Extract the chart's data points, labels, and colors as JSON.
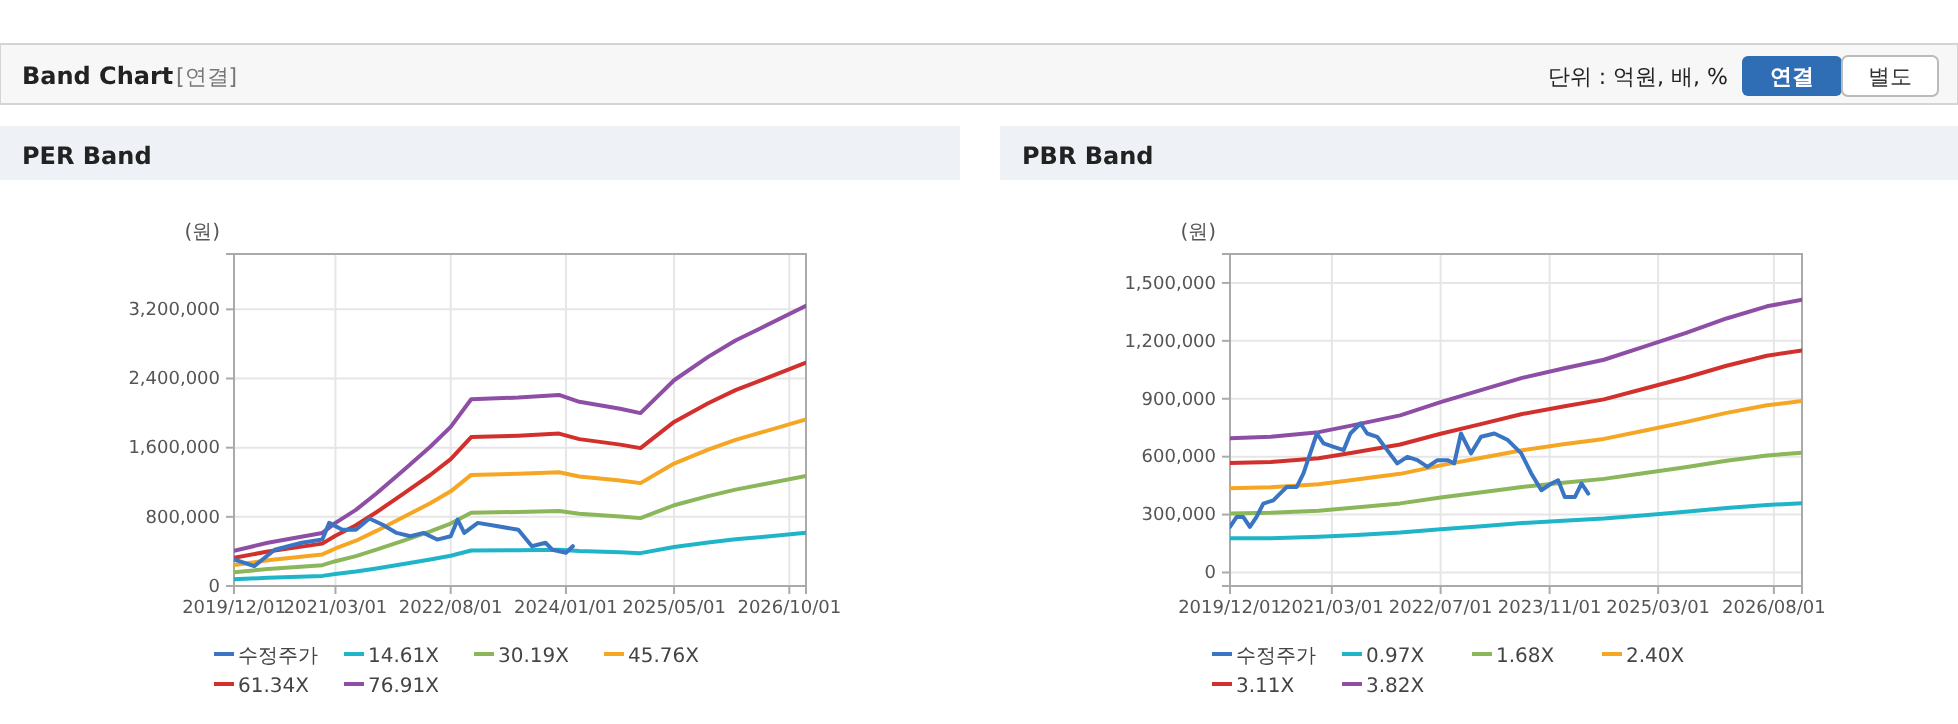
{
  "chart_data": [
    {
      "type": "line",
      "title": "PER Band",
      "ylabel": "(원)",
      "annotations": [
        "Band Chart",
        "[연결]",
        "단위 : 억원, 배, %",
        "연결",
        "별도"
      ],
      "grid": true,
      "legend": "bottom",
      "xlim": [
        "2019-12-01",
        "2026-12-15"
      ],
      "ylim": [
        0,
        3840000
      ],
      "xticks": [
        {
          "value": "2019-12-01",
          "label": "2019/12/01"
        },
        {
          "value": "2021-03-01",
          "label": "2021/03/01"
        },
        {
          "value": "2022-08-01",
          "label": "2022/08/01"
        },
        {
          "value": "2024-01-01",
          "label": "2024/01/01"
        },
        {
          "value": "2025-05-01",
          "label": "2025/05/01"
        },
        {
          "value": "2026-10-01",
          "label": "2026/10/01"
        }
      ],
      "yticks": [
        {
          "value": 0,
          "label": "0"
        },
        {
          "value": 800000,
          "label": "800,000"
        },
        {
          "value": 1600000,
          "label": "1,600,000"
        },
        {
          "value": 2400000,
          "label": "2,400,000"
        },
        {
          "value": 3200000,
          "label": "3,200,000"
        }
      ],
      "series": [
        {
          "name": "14.61X",
          "color": "#1fb5c8",
          "x": [
            "2019-12-01",
            "2020-05-01",
            "2021-01-01",
            "2021-03-01",
            "2021-06-01",
            "2021-09-01",
            "2022-01-01",
            "2022-05-01",
            "2022-08-01",
            "2022-11-01",
            "2023-06-01",
            "2023-12-01",
            "2024-03-01",
            "2024-09-01",
            "2024-12-01",
            "2025-05-01",
            "2025-10-01",
            "2026-02-01",
            "2026-06-01",
            "2026-12-15"
          ],
          "values": [
            77000,
            95000,
            117000,
            139000,
            167000,
            203000,
            255000,
            306000,
            350000,
            410000,
            414000,
            420000,
            405000,
            390000,
            380000,
            452000,
            504000,
            540000,
            568000,
            616000
          ]
        },
        {
          "name": "30.19X",
          "color": "#8cb65a",
          "x": [
            "2019-12-01",
            "2020-05-01",
            "2021-01-01",
            "2021-03-01",
            "2021-06-01",
            "2021-09-01",
            "2022-01-01",
            "2022-05-01",
            "2022-08-01",
            "2022-11-01",
            "2023-06-01",
            "2023-12-01",
            "2024-03-01",
            "2024-09-01",
            "2024-12-01",
            "2025-05-01",
            "2025-10-01",
            "2026-02-01",
            "2026-06-01",
            "2026-12-15"
          ],
          "values": [
            160000,
            196000,
            241000,
            287000,
            345000,
            420000,
            526000,
            632000,
            722000,
            848000,
            856000,
            867000,
            836000,
            805000,
            785000,
            934000,
            1040000,
            1115000,
            1174000,
            1272000
          ]
        },
        {
          "name": "45.76X",
          "color": "#f5a623",
          "x": [
            "2019-12-01",
            "2020-05-01",
            "2021-01-01",
            "2021-03-01",
            "2021-06-01",
            "2021-09-01",
            "2022-01-01",
            "2022-05-01",
            "2022-08-01",
            "2022-11-01",
            "2023-06-01",
            "2023-12-01",
            "2024-03-01",
            "2024-09-01",
            "2024-12-01",
            "2025-05-01",
            "2025-10-01",
            "2026-02-01",
            "2026-06-01",
            "2026-12-15"
          ],
          "values": [
            242000,
            298000,
            365000,
            434000,
            524000,
            637000,
            797000,
            958000,
            1095000,
            1285000,
            1297000,
            1315000,
            1267000,
            1220000,
            1190000,
            1416000,
            1577000,
            1690000,
            1779000,
            1928000
          ]
        },
        {
          "name": "61.34X",
          "color": "#d2302c",
          "x": [
            "2019-12-01",
            "2020-05-01",
            "2021-01-01",
            "2021-03-01",
            "2021-06-01",
            "2021-09-01",
            "2022-01-01",
            "2022-05-01",
            "2022-08-01",
            "2022-11-01",
            "2023-06-01",
            "2023-12-01",
            "2024-03-01",
            "2024-09-01",
            "2024-12-01",
            "2025-05-01",
            "2025-10-01",
            "2026-02-01",
            "2026-06-01",
            "2026-12-15"
          ],
          "values": [
            325000,
            399000,
            490000,
            582000,
            702000,
            853000,
            1069000,
            1284000,
            1468000,
            1723000,
            1739000,
            1763000,
            1699000,
            1635000,
            1595000,
            1898000,
            2114000,
            2265000,
            2385000,
            2584000
          ]
        },
        {
          "name": "76.91X",
          "color": "#8e4ea6",
          "x": [
            "2019-12-01",
            "2020-05-01",
            "2021-01-01",
            "2021-03-01",
            "2021-06-01",
            "2021-09-01",
            "2022-01-01",
            "2022-05-01",
            "2022-08-01",
            "2022-11-01",
            "2023-06-01",
            "2023-12-01",
            "2024-03-01",
            "2024-09-01",
            "2024-12-01",
            "2025-05-01",
            "2025-10-01",
            "2026-02-01",
            "2026-06-01",
            "2026-12-15"
          ],
          "values": [
            407000,
            500000,
            614000,
            730000,
            880000,
            1070000,
            1340000,
            1610000,
            1840000,
            2160000,
            2180000,
            2210000,
            2130000,
            2050000,
            2000000,
            2380000,
            2650000,
            2840000,
            2990000,
            3240000
          ]
        },
        {
          "name": "수정주가",
          "color": "#3a75c4",
          "x": [
            "2019-12-01",
            "2020-03-01",
            "2020-06-01",
            "2020-10-01",
            "2021-01-01",
            "2021-02-01",
            "2021-04-01",
            "2021-06-01",
            "2021-08-01",
            "2021-10-01",
            "2021-12-01",
            "2022-02-01",
            "2022-04-01",
            "2022-06-01",
            "2022-08-01",
            "2022-09-01",
            "2022-10-01",
            "2022-12-01",
            "2023-03-01",
            "2023-06-01",
            "2023-08-01",
            "2023-10-01",
            "2023-11-01",
            "2024-01-01",
            "2024-02-01"
          ],
          "values": [
            307000,
            230000,
            420000,
            500000,
            537000,
            730000,
            650000,
            650000,
            780000,
            705000,
            614000,
            575000,
            614000,
            537000,
            575000,
            767000,
            614000,
            730000,
            690000,
            650000,
            460000,
            500000,
            420000,
            384000,
            460000
          ]
        }
      ]
    },
    {
      "type": "line",
      "title": "PBR Band",
      "ylabel": "(원)",
      "grid": true,
      "legend": "bottom",
      "xlim": [
        "2019-12-01",
        "2026-12-05"
      ],
      "ylim": [
        -70000,
        1650000
      ],
      "xticks": [
        {
          "value": "2019-12-01",
          "label": "2019/12/01"
        },
        {
          "value": "2021-03-01",
          "label": "2021/03/01"
        },
        {
          "value": "2022-07-01",
          "label": "2022/07/01"
        },
        {
          "value": "2023-11-01",
          "label": "2023/11/01"
        },
        {
          "value": "2025-03-01",
          "label": "2025/03/01"
        },
        {
          "value": "2026-08-01",
          "label": "2026/08/01"
        }
      ],
      "yticks": [
        {
          "value": 0,
          "label": "0"
        },
        {
          "value": 300000,
          "label": "300,000"
        },
        {
          "value": 600000,
          "label": "600,000"
        },
        {
          "value": 900000,
          "label": "900,000"
        },
        {
          "value": 1200000,
          "label": "1,200,000"
        },
        {
          "value": 1500000,
          "label": "1,500,000"
        }
      ],
      "series": [
        {
          "name": "0.97X",
          "color": "#1fb5c8",
          "x": [
            "2019-12-01",
            "2020-06-01",
            "2021-01-01",
            "2021-06-01",
            "2022-01-01",
            "2022-07-01",
            "2023-01-01",
            "2023-07-01",
            "2024-01-01",
            "2024-07-01",
            "2025-01-01",
            "2025-07-01",
            "2026-01-01",
            "2026-07-01",
            "2026-12-05"
          ],
          "values": [
            177000,
            178000,
            185000,
            193000,
            207000,
            224000,
            240000,
            256000,
            268000,
            280000,
            297000,
            315000,
            334000,
            350000,
            359000
          ]
        },
        {
          "name": "1.68X",
          "color": "#8cb65a",
          "x": [
            "2019-12-01",
            "2020-06-01",
            "2021-01-01",
            "2021-06-01",
            "2022-01-01",
            "2022-07-01",
            "2023-01-01",
            "2023-07-01",
            "2024-01-01",
            "2024-07-01",
            "2025-01-01",
            "2025-07-01",
            "2026-01-01",
            "2026-07-01",
            "2026-12-05"
          ],
          "values": [
            306000,
            309000,
            320000,
            335000,
            358000,
            388000,
            416000,
            443000,
            465000,
            485000,
            515000,
            545000,
            579000,
            606000,
            621000
          ]
        },
        {
          "name": "2.40X",
          "color": "#f5a623",
          "x": [
            "2019-12-01",
            "2020-06-01",
            "2021-01-01",
            "2021-06-01",
            "2022-01-01",
            "2022-07-01",
            "2023-01-01",
            "2023-07-01",
            "2024-01-01",
            "2024-07-01",
            "2025-01-01",
            "2025-07-01",
            "2026-01-01",
            "2026-07-01",
            "2026-12-05"
          ],
          "values": [
            437000,
            442000,
            457000,
            479000,
            511000,
            555000,
            594000,
            633000,
            664000,
            692000,
            736000,
            779000,
            827000,
            866000,
            888000
          ]
        },
        {
          "name": "3.11X",
          "color": "#d2302c",
          "x": [
            "2019-12-01",
            "2020-06-01",
            "2021-01-01",
            "2021-06-01",
            "2022-01-01",
            "2022-07-01",
            "2023-01-01",
            "2023-07-01",
            "2024-01-01",
            "2024-07-01",
            "2025-01-01",
            "2025-07-01",
            "2026-01-01",
            "2026-07-01",
            "2026-12-05"
          ],
          "values": [
            567000,
            572000,
            592000,
            620000,
            663000,
            719000,
            770000,
            821000,
            860000,
            897000,
            953000,
            1009000,
            1071000,
            1123000,
            1150000
          ]
        },
        {
          "name": "3.82X",
          "color": "#8e4ea6",
          "x": [
            "2019-12-01",
            "2020-06-01",
            "2021-01-01",
            "2021-06-01",
            "2022-01-01",
            "2022-07-01",
            "2023-01-01",
            "2023-07-01",
            "2024-01-01",
            "2024-07-01",
            "2025-01-01",
            "2025-07-01",
            "2026-01-01",
            "2026-07-01",
            "2026-12-05"
          ],
          "values": [
            696000,
            703000,
            727000,
            762000,
            814000,
            883000,
            946000,
            1008000,
            1057000,
            1102000,
            1171000,
            1240000,
            1316000,
            1379000,
            1413000
          ]
        },
        {
          "name": "수정주가",
          "color": "#3a75c4",
          "x": [
            "2019-12-01",
            "2019-12-31",
            "2020-01-29",
            "2020-02-28",
            "2020-03-29",
            "2020-04-28",
            "2020-06-12",
            "2020-07-12",
            "2020-08-11",
            "2020-09-25",
            "2020-10-25",
            "2020-11-24",
            "2020-12-24",
            "2021-01-23",
            "2021-03-09",
            "2021-04-23",
            "2021-05-23",
            "2021-07-07",
            "2021-08-06",
            "2021-09-20",
            "2021-11-04",
            "2021-12-19",
            "2022-02-02",
            "2022-03-19",
            "2022-05-03",
            "2022-06-17",
            "2022-08-01",
            "2022-08-31",
            "2022-09-30",
            "2022-11-14",
            "2022-12-29",
            "2023-02-27",
            "2023-04-28",
            "2023-06-27",
            "2023-08-11",
            "2023-09-25",
            "2023-11-09",
            "2023-12-09",
            "2024-01-08",
            "2024-02-22",
            "2024-03-23",
            "2024-04-22"
          ],
          "values": [
            236000,
            288000,
            288000,
            236000,
            288000,
            357000,
            374000,
            409000,
            443000,
            443000,
            513000,
            617000,
            720000,
            669000,
            651000,
            634000,
            720000,
            772000,
            720000,
            703000,
            634000,
            565000,
            599000,
            582000,
            547000,
            582000,
            582000,
            565000,
            720000,
            617000,
            703000,
            720000,
            686000,
            617000,
            513000,
            426000,
            461000,
            478000,
            391000,
            391000,
            461000,
            409000
          ]
        }
      ]
    }
  ]
}
